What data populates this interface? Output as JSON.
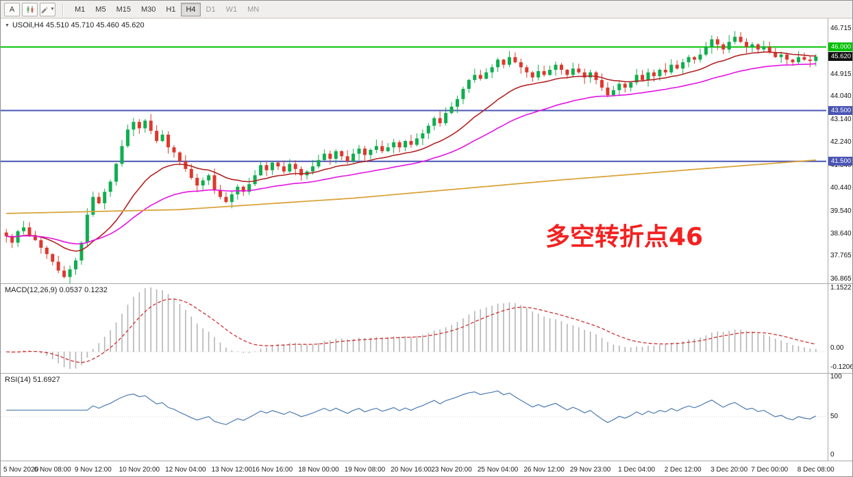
{
  "toolbar": {
    "a_label": "A",
    "timeframes": [
      "M1",
      "M5",
      "M15",
      "M30",
      "H1",
      "H4",
      "D1",
      "W1",
      "MN"
    ],
    "active_timeframe": "H4",
    "muted_timeframes": [
      "D1",
      "W1",
      "MN"
    ]
  },
  "chart": {
    "symbol_label": "USOil,H4 45.510 45.710 45.460 45.620",
    "annotation": "多空转折点46",
    "price_ticks": [
      46.715,
      44.915,
      44.04,
      43.14,
      42.24,
      41.34,
      40.44,
      39.54,
      38.64,
      37.765,
      36.865
    ],
    "hlines": [
      {
        "value": 46.0,
        "label": "46.000",
        "color": "#00c000"
      },
      {
        "value": 43.5,
        "label": "43.500",
        "color": "#4a55b4"
      },
      {
        "value": 41.5,
        "label": "41.500",
        "color": "#4a55b4"
      }
    ],
    "current_price": {
      "value": 45.62,
      "label": "45.620",
      "tag_color": "#111111"
    }
  },
  "macd": {
    "label": "MACD(12,26,9) 0.0537 0.1232",
    "axis_top": "1.1522",
    "axis_zero": "0.00",
    "axis_bottom": "-0.1206"
  },
  "rsi": {
    "label": "RSI(14) 51.6927",
    "axis_top": "100",
    "axis_mid": "50",
    "axis_bottom": "0"
  },
  "time_axis": [
    {
      "label": "5 Nov 2020",
      "i": 0
    },
    {
      "label": "6 Nov 08:00",
      "i": 8
    },
    {
      "label": "9 Nov 12:00",
      "i": 15
    },
    {
      "label": "10 Nov 20:00",
      "i": 23
    },
    {
      "label": "12 Nov 04:00",
      "i": 31
    },
    {
      "label": "13 Nov 12:00",
      "i": 39
    },
    {
      "label": "16 Nov 16:00",
      "i": 46
    },
    {
      "label": "18 Nov 00:00",
      "i": 54
    },
    {
      "label": "19 Nov 08:00",
      "i": 62
    },
    {
      "label": "20 Nov 16:00",
      "i": 70
    },
    {
      "label": "23 Nov 20:00",
      "i": 77
    },
    {
      "label": "25 Nov 04:00",
      "i": 85
    },
    {
      "label": "26 Nov 12:00",
      "i": 93
    },
    {
      "label": "29 Nov 23:00",
      "i": 101
    },
    {
      "label": "1 Dec 04:00",
      "i": 109
    },
    {
      "label": "2 Dec 12:00",
      "i": 117
    },
    {
      "label": "3 Dec 20:00",
      "i": 125
    },
    {
      "label": "7 Dec 00:00",
      "i": 132
    },
    {
      "label": "8 Dec 08:00",
      "i": 140
    }
  ],
  "colors": {
    "up_candle": "#0fae4e",
    "down_candle": "#de382d",
    "ma_red": "#b22222",
    "ma_magenta": "#e312e3",
    "ma_orange": "#d9a43c",
    "macd_hist": "#b5b5b5",
    "macd_signal": "#cf2e2e",
    "rsi_line": "#4a79ad"
  },
  "chart_data": {
    "type": "candlestick",
    "symbol": "USOil",
    "timeframe": "H4",
    "closes": [
      38.55,
      38.3,
      38.75,
      38.9,
      38.6,
      38.4,
      38.1,
      37.85,
      37.55,
      37.2,
      36.95,
      37.25,
      37.6,
      38.3,
      39.4,
      40.1,
      39.85,
      40.3,
      40.7,
      41.4,
      42.1,
      42.75,
      43.05,
      42.8,
      43.1,
      42.7,
      42.3,
      42.55,
      42.05,
      41.85,
      41.5,
      41.2,
      40.85,
      40.55,
      40.75,
      40.95,
      40.35,
      40.1,
      39.9,
      40.2,
      40.5,
      40.3,
      40.6,
      40.95,
      41.35,
      41.15,
      41.45,
      41.3,
      41.1,
      41.4,
      41.2,
      40.95,
      41.1,
      41.3,
      41.55,
      41.8,
      41.6,
      41.9,
      41.7,
      41.5,
      41.8,
      42.0,
      41.75,
      41.95,
      42.1,
      41.9,
      42.05,
      42.25,
      42.05,
      42.3,
      42.15,
      42.4,
      42.6,
      42.9,
      43.2,
      43.0,
      43.4,
      43.65,
      43.95,
      44.35,
      44.7,
      44.9,
      44.75,
      45.0,
      45.2,
      45.5,
      45.3,
      45.6,
      45.4,
      45.2,
      45.0,
      44.8,
      45.05,
      44.9,
      45.1,
      45.3,
      45.1,
      44.9,
      45.15,
      45.0,
      44.8,
      45.0,
      44.7,
      44.4,
      44.1,
      44.3,
      44.55,
      44.4,
      44.6,
      44.9,
      44.7,
      45.0,
      44.85,
      45.1,
      45.0,
      45.3,
      45.15,
      45.4,
      45.6,
      45.5,
      45.7,
      46.0,
      46.3,
      46.1,
      45.9,
      46.2,
      46.4,
      46.2,
      46.0,
      46.1,
      45.9,
      46.0,
      45.8,
      45.6,
      45.7,
      45.5,
      45.4,
      45.6,
      45.5,
      45.45,
      45.62
    ],
    "price_range": [
      36.7,
      47.12
    ],
    "ma_fast_period": 18,
    "ma_slow_period": 42,
    "orange_anchors": [
      [
        0,
        39.45
      ],
      [
        30,
        39.6
      ],
      [
        60,
        40.05
      ],
      [
        95,
        40.75
      ],
      [
        120,
        41.2
      ],
      [
        140,
        41.55
      ]
    ],
    "macd_params": [
      12,
      26,
      9
    ],
    "rsi_period": 14
  }
}
